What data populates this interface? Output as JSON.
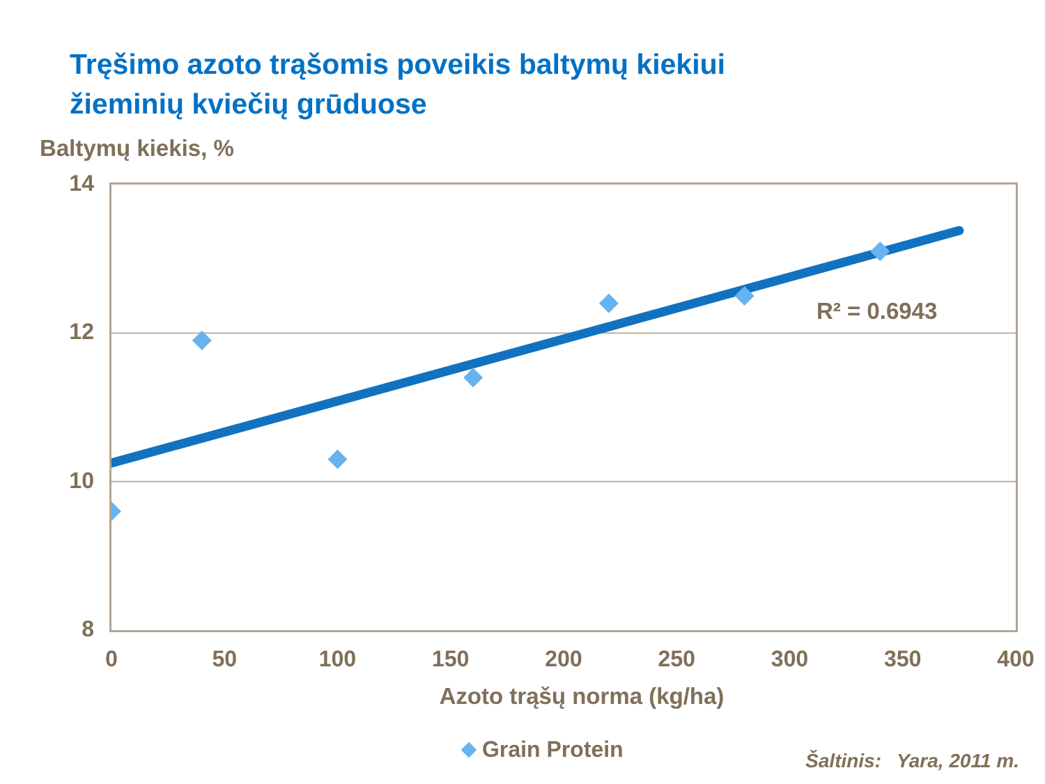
{
  "title": {
    "line1": "Tręšimo azoto trąšomis poveikis baltymų kiekiui",
    "line2": "žieminių kviečių grūduose"
  },
  "annotation": {
    "r_squared": "R² = 0.6943"
  },
  "legend": {
    "label": "Grain Protein",
    "marker": "diamond-icon"
  },
  "source": {
    "prefix": "Šaltinis:",
    "text": "Yara, 2011 m."
  },
  "colors": {
    "title": "#0071C5",
    "trendline": "#1272BF",
    "point": "#66B3F0",
    "text": "#7F7058",
    "grid": "#BCAF9F",
    "border": "#B2A494"
  },
  "chart_data": {
    "type": "scatter",
    "title": "Tręšimo azoto trąšomis poveikis baltymų kiekiui žieminių kviečių grūduose",
    "xlabel": "Azoto trąšų norma (kg/ha)",
    "ylabel": "Baltymų kiekis, %",
    "xlim": [
      0,
      400
    ],
    "ylim": [
      8,
      14
    ],
    "x_ticks": [
      0,
      50,
      100,
      150,
      200,
      250,
      300,
      350,
      400
    ],
    "y_ticks": [
      8,
      10,
      12,
      14
    ],
    "grid": "horizontal",
    "legend_position": "bottom-center",
    "series": [
      {
        "name": "Grain Protein",
        "marker": "diamond",
        "points": [
          [
            0,
            9.6
          ],
          [
            40,
            11.9
          ],
          [
            100,
            10.3
          ],
          [
            160,
            11.4
          ],
          [
            220,
            12.4
          ],
          [
            280,
            12.5
          ],
          [
            340,
            13.1
          ]
        ]
      }
    ],
    "trendline": {
      "type": "linear",
      "x1": 0,
      "y1": 10.25,
      "x2": 375,
      "y2": 13.38,
      "r_squared": 0.6943
    }
  }
}
